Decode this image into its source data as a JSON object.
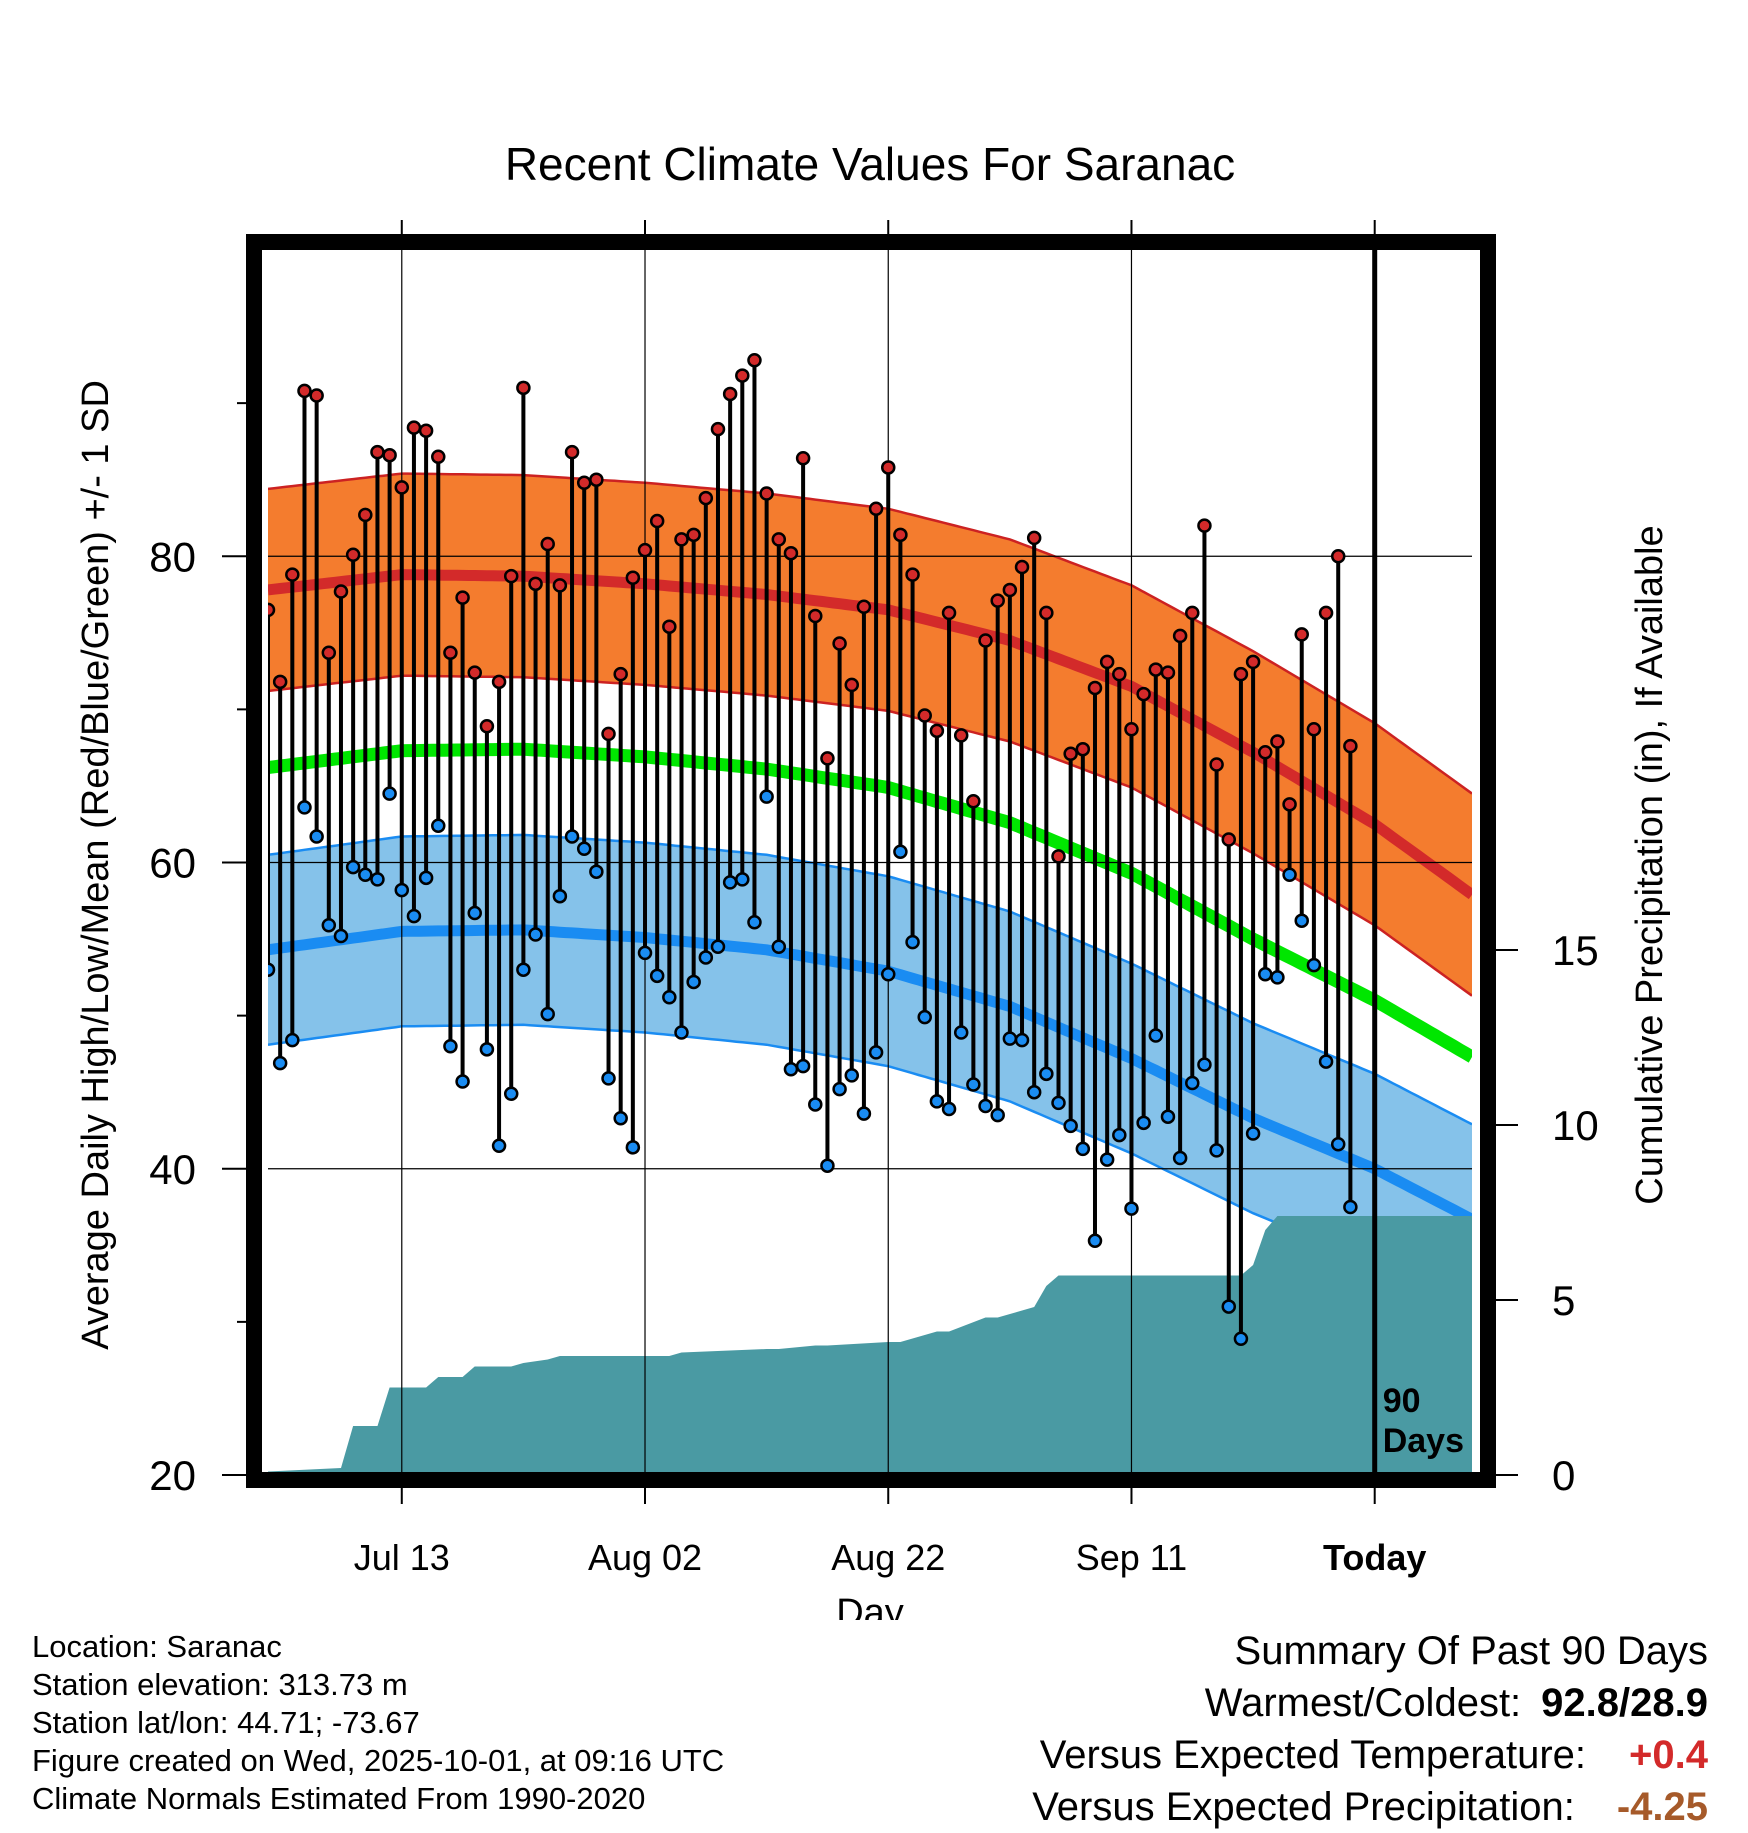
{
  "chart_data": {
    "type": "line",
    "title": "Recent Climate Values For Saranac",
    "xlabel": "Day",
    "ylabel": "Average Daily High/Low/Mean (Red/Blue/Green) +/- 1 SD",
    "y2label": "Cumulative Precipitation (in), If Available",
    "ylim": [
      20,
      100
    ],
    "y2lim": [
      0,
      35
    ],
    "yticks": [
      20,
      40,
      60,
      80
    ],
    "y2ticks": [
      0,
      5,
      10,
      15
    ],
    "xlim": [
      1,
      100
    ],
    "xticks": [
      {
        "day": 12,
        "label": "Jul 13"
      },
      {
        "day": 32,
        "label": "Aug 02"
      },
      {
        "day": 52,
        "label": "Aug 22"
      },
      {
        "day": 72,
        "label": "Sep 11"
      },
      {
        "day": 92,
        "label": "Today"
      }
    ],
    "today_marker": {
      "day": 92,
      "label_line1": "90",
      "label_line2": "Days"
    },
    "normal_high": {
      "x": [
        1,
        12,
        22,
        32,
        42,
        52,
        62,
        72,
        82,
        92,
        100
      ],
      "mean": [
        77.8,
        78.8,
        78.7,
        78.2,
        77.5,
        76.5,
        74.5,
        71.5,
        67.2,
        62.5,
        57.9
      ],
      "sd": 6.6
    },
    "normal_mean": {
      "x": [
        1,
        12,
        22,
        32,
        42,
        52,
        62,
        72,
        82,
        92,
        100
      ],
      "values": [
        66.2,
        67.3,
        67.4,
        66.9,
        66.1,
        64.9,
        62.6,
        59.3,
        55.0,
        51.0,
        47.3
      ]
    },
    "normal_low": {
      "x": [
        1,
        12,
        22,
        32,
        42,
        52,
        62,
        72,
        82,
        92,
        100
      ],
      "mean": [
        54.3,
        55.5,
        55.6,
        55.1,
        54.3,
        52.9,
        50.6,
        47.2,
        43.3,
        40.0,
        36.7
      ],
      "sd": 6.2
    },
    "observed": [
      {
        "day": 1,
        "high": 76.5,
        "low": 53.0
      },
      {
        "day": 2,
        "high": 71.8,
        "low": 46.9
      },
      {
        "day": 3,
        "high": 78.8,
        "low": 48.4
      },
      {
        "day": 4,
        "high": 90.8,
        "low": 63.6
      },
      {
        "day": 5,
        "high": 90.5,
        "low": 61.7
      },
      {
        "day": 6,
        "high": 73.7,
        "low": 55.9
      },
      {
        "day": 7,
        "high": 77.7,
        "low": 55.2
      },
      {
        "day": 8,
        "high": 80.1,
        "low": 59.7
      },
      {
        "day": 9,
        "high": 82.7,
        "low": 59.2
      },
      {
        "day": 10,
        "high": 86.8,
        "low": 58.9
      },
      {
        "day": 11,
        "high": 86.6,
        "low": 64.5
      },
      {
        "day": 12,
        "high": 84.5,
        "low": 58.2
      },
      {
        "day": 13,
        "high": 88.4,
        "low": 56.5
      },
      {
        "day": 14,
        "high": 88.2,
        "low": 59.0
      },
      {
        "day": 15,
        "high": 86.5,
        "low": 62.4
      },
      {
        "day": 16,
        "high": 73.7,
        "low": 48.0
      },
      {
        "day": 17,
        "high": 77.3,
        "low": 45.7
      },
      {
        "day": 18,
        "high": 72.4,
        "low": 56.7
      },
      {
        "day": 19,
        "high": 68.9,
        "low": 47.8
      },
      {
        "day": 20,
        "high": 71.8,
        "low": 41.5
      },
      {
        "day": 21,
        "high": 78.7,
        "low": 44.9
      },
      {
        "day": 22,
        "high": 91.0,
        "low": 53.0
      },
      {
        "day": 23,
        "high": 78.2,
        "low": 55.3
      },
      {
        "day": 24,
        "high": 80.8,
        "low": 50.1
      },
      {
        "day": 25,
        "high": 78.1,
        "low": 57.8
      },
      {
        "day": 26,
        "high": 86.8,
        "low": 61.7
      },
      {
        "day": 27,
        "high": 84.8,
        "low": 60.9
      },
      {
        "day": 28,
        "high": 85.0,
        "low": 59.4
      },
      {
        "day": 29,
        "high": 68.4,
        "low": 45.9
      },
      {
        "day": 30,
        "high": 72.3,
        "low": 43.3
      },
      {
        "day": 31,
        "high": 78.6,
        "low": 41.4
      },
      {
        "day": 32,
        "high": 80.4,
        "low": 54.1
      },
      {
        "day": 33,
        "high": 82.3,
        "low": 52.6
      },
      {
        "day": 34,
        "high": 75.4,
        "low": 51.2
      },
      {
        "day": 35,
        "high": 81.1,
        "low": 48.9
      },
      {
        "day": 36,
        "high": 81.4,
        "low": 52.2
      },
      {
        "day": 37,
        "high": 83.8,
        "low": 53.8
      },
      {
        "day": 38,
        "high": 88.3,
        "low": 54.5
      },
      {
        "day": 39,
        "high": 90.6,
        "low": 58.7
      },
      {
        "day": 40,
        "high": 91.8,
        "low": 58.9
      },
      {
        "day": 41,
        "high": 92.8,
        "low": 56.1
      },
      {
        "day": 42,
        "high": 84.1,
        "low": 64.3
      },
      {
        "day": 43,
        "high": 81.1,
        "low": 54.5
      },
      {
        "day": 44,
        "high": 80.2,
        "low": 46.5
      },
      {
        "day": 45,
        "high": 86.4,
        "low": 46.7
      },
      {
        "day": 46,
        "high": 76.1,
        "low": 44.2
      },
      {
        "day": 47,
        "high": 66.8,
        "low": 40.2
      },
      {
        "day": 48,
        "high": 74.3,
        "low": 45.2
      },
      {
        "day": 49,
        "high": 71.6,
        "low": 46.1
      },
      {
        "day": 50,
        "high": 76.7,
        "low": 43.6
      },
      {
        "day": 51,
        "high": 83.1,
        "low": 47.6
      },
      {
        "day": 52,
        "high": 85.8,
        "low": 52.7
      },
      {
        "day": 53,
        "high": 81.4,
        "low": 60.7
      },
      {
        "day": 54,
        "high": 78.8,
        "low": 54.8
      },
      {
        "day": 55,
        "high": 69.6,
        "low": 49.9
      },
      {
        "day": 56,
        "high": 68.6,
        "low": 44.4
      },
      {
        "day": 57,
        "high": 76.3,
        "low": 43.9
      },
      {
        "day": 58,
        "high": 68.3,
        "low": 48.9
      },
      {
        "day": 59,
        "high": 64.0,
        "low": 45.5
      },
      {
        "day": 60,
        "high": 74.5,
        "low": 44.1
      },
      {
        "day": 61,
        "high": 77.1,
        "low": 43.5
      },
      {
        "day": 62,
        "high": 77.8,
        "low": 48.5
      },
      {
        "day": 63,
        "high": 79.3,
        "low": 48.4
      },
      {
        "day": 64,
        "high": 81.2,
        "low": 45.0
      },
      {
        "day": 65,
        "high": 76.3,
        "low": 46.2
      },
      {
        "day": 66,
        "high": 60.4,
        "low": 44.3
      },
      {
        "day": 67,
        "high": 67.1,
        "low": 42.8
      },
      {
        "day": 68,
        "high": 67.4,
        "low": 41.3
      },
      {
        "day": 69,
        "high": 71.4,
        "low": 35.3
      },
      {
        "day": 70,
        "high": 73.1,
        "low": 40.6
      },
      {
        "day": 71,
        "high": 72.3,
        "low": 42.2
      },
      {
        "day": 72,
        "high": 68.7,
        "low": 37.4
      },
      {
        "day": 73,
        "high": 71.0,
        "low": 43.0
      },
      {
        "day": 74,
        "high": 72.6,
        "low": 48.7
      },
      {
        "day": 75,
        "high": 72.4,
        "low": 43.4
      },
      {
        "day": 76,
        "high": 74.8,
        "low": 40.7
      },
      {
        "day": 77,
        "high": 76.3,
        "low": 45.6
      },
      {
        "day": 78,
        "high": 82.0,
        "low": 46.8
      },
      {
        "day": 79,
        "high": 66.4,
        "low": 41.2
      },
      {
        "day": 80,
        "high": 61.5,
        "low": 31.0
      },
      {
        "day": 81,
        "high": 72.3,
        "low": 28.9
      },
      {
        "day": 82,
        "high": 73.1,
        "low": 42.3
      },
      {
        "day": 83,
        "high": 67.2,
        "low": 52.7
      },
      {
        "day": 84,
        "high": 67.9,
        "low": 52.5
      },
      {
        "day": 85,
        "high": 63.8,
        "low": 59.2
      },
      {
        "day": 86,
        "high": 74.9,
        "low": 56.2
      },
      {
        "day": 87,
        "high": 68.7,
        "low": 53.3
      },
      {
        "day": 88,
        "high": 76.3,
        "low": 47.0
      },
      {
        "day": 89,
        "high": 80.0,
        "low": 41.6
      },
      {
        "day": 90,
        "high": 67.6,
        "low": 37.5
      }
    ],
    "precipitation": {
      "days": [
        1,
        7,
        8,
        10,
        11,
        14,
        15,
        17,
        18,
        21,
        22,
        24,
        25,
        34,
        35,
        42,
        43,
        46,
        47,
        52,
        53,
        56,
        57,
        60,
        61,
        64,
        65,
        66,
        67,
        81,
        82,
        83,
        84,
        100
      ],
      "cumulative": [
        0.1,
        0.2,
        1.4,
        1.4,
        2.5,
        2.5,
        2.8,
        2.8,
        3.1,
        3.1,
        3.2,
        3.3,
        3.4,
        3.4,
        3.5,
        3.6,
        3.6,
        3.7,
        3.7,
        3.8,
        3.8,
        4.1,
        4.1,
        4.5,
        4.5,
        4.8,
        5.4,
        5.7,
        5.7,
        5.7,
        6.0,
        7.0,
        7.4,
        7.4
      ]
    }
  },
  "footer": {
    "location": "Location: Saranac",
    "elevation": "Station elevation: 313.73 m",
    "latlon": "Station lat/lon: 44.71; -73.67",
    "created": "Figure created on Wed, 2025-10-01, at 09:16 UTC",
    "normals": "Climate Normals Estimated From 1990-2020"
  },
  "summary": {
    "title": "Summary Of Past 90 Days",
    "warm_cold_label": "Warmest/Coldest:",
    "warm_cold_value": "92.8/28.9",
    "temp_label": "Versus Expected Temperature:",
    "temp_value": "+0.4",
    "precip_label": "Versus Expected Precipitation:",
    "precip_value": "-4.25"
  },
  "colors": {
    "high_band": "#f47c2e",
    "high_line": "#d32a2a",
    "mean_line": "#00e600",
    "low_band": "#85c2ea",
    "low_line": "#1a8cf2",
    "precip_fill": "#4a9aa3",
    "high_dot": "#d32a2a",
    "low_dot": "#1a8cf2",
    "temp_positive": "#d32a2a",
    "precip_negative": "#a65a2a"
  }
}
